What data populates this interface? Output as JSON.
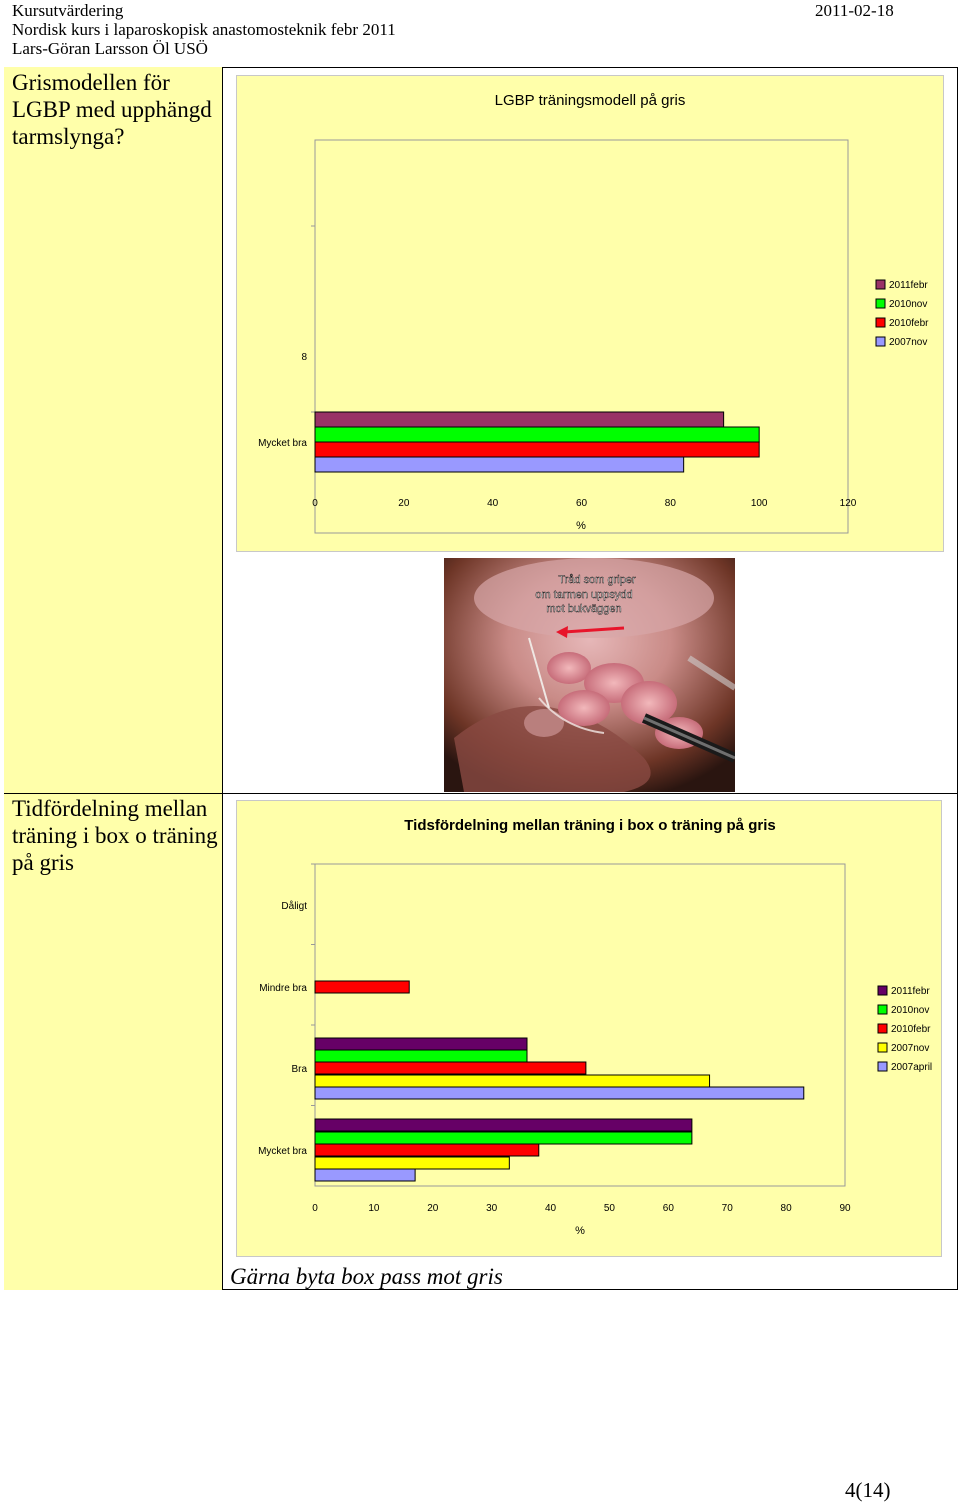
{
  "header": {
    "course_title": "Kursutvärdering",
    "date": "2011-02-18",
    "subtitle": "Nordisk kurs i laparoskopisk anastomosteknik febr 2011",
    "author": "Lars-Göran Larsson Öl USÖ"
  },
  "section1": {
    "label": "Grismodellen för LGBP med upphängd tarmslynga?"
  },
  "section2": {
    "label": "Tidfördelning mellan träning i box o träning på gris"
  },
  "photo": {
    "annotation_line1": "Tråd som griper",
    "annotation_line2": "om tarmen uppsydd",
    "annotation_line3": "mot bukväggen",
    "caption": "Gärna byta box pass mot gris"
  },
  "colors": {
    "panel_bg": "#ffffaa",
    "s_2011_febr": "#993366",
    "s_2011_febr_dark": "#660066",
    "s_2010_nov": "#00ff00",
    "s_2010_febr": "#ff0000",
    "s_2007_nov": "#9999ff",
    "s_2007_nov_b": "#ffff00",
    "s_2007_april": "#9999ff"
  },
  "chart_data": [
    {
      "type": "bar",
      "orientation": "horizontal",
      "title": "LGBP träningsmodell på gris",
      "xlabel": "%",
      "xlim": [
        0,
        120
      ],
      "xticks": [
        0,
        20,
        40,
        60,
        80,
        100,
        120
      ],
      "categories": [
        "8",
        "Mycket bra"
      ],
      "series": [
        {
          "name": "2011febr",
          "values": [
            0,
            92
          ]
        },
        {
          "name": "2010nov",
          "values": [
            0,
            100
          ]
        },
        {
          "name": "2010febr",
          "values": [
            0,
            100
          ]
        },
        {
          "name": "2007nov",
          "values": [
            0,
            83
          ]
        }
      ],
      "legend": "right"
    },
    {
      "type": "bar",
      "orientation": "horizontal",
      "title": "Tidsfördelning mellan träning i box o träning på gris",
      "xlabel": "%",
      "xlim": [
        0,
        90
      ],
      "xticks": [
        0,
        10,
        20,
        30,
        40,
        50,
        60,
        70,
        80,
        90
      ],
      "categories": [
        "Dåligt",
        "Mindre bra",
        "Bra",
        "Mycket bra"
      ],
      "series": [
        {
          "name": "2011febr",
          "values": [
            0,
            0,
            36,
            64
          ]
        },
        {
          "name": "2010nov",
          "values": [
            0,
            0,
            36,
            64
          ]
        },
        {
          "name": "2010febr",
          "values": [
            0,
            16,
            46,
            38
          ]
        },
        {
          "name": "2007nov",
          "values": [
            0,
            0,
            67,
            33
          ]
        },
        {
          "name": "2007april",
          "values": [
            0,
            0,
            83,
            17
          ]
        }
      ],
      "legend": "right"
    }
  ],
  "footer": {
    "page": "4(14)"
  }
}
